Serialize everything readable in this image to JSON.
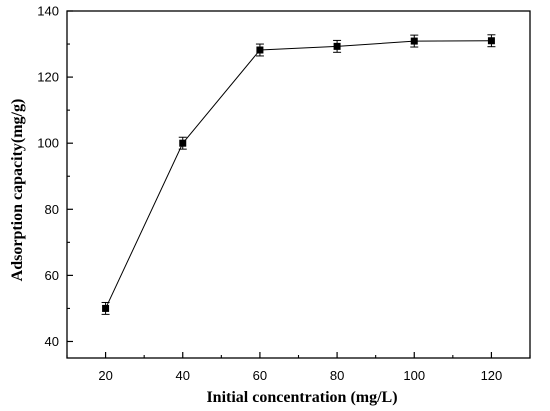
{
  "chart_data": {
    "type": "line",
    "title": "",
    "xlabel": "Initial concentration (mg/L)",
    "ylabel": "Adsorption capacity(mg/g)",
    "xlim": [
      10,
      130
    ],
    "ylim": [
      35,
      140
    ],
    "xticks": [
      20,
      40,
      60,
      80,
      100,
      120
    ],
    "yticks": [
      40,
      60,
      80,
      100,
      120,
      140
    ],
    "grid": false,
    "legend": "none",
    "marker": "square",
    "error_bars": true,
    "series": [
      {
        "x": [
          20,
          40,
          60,
          80,
          100,
          120
        ],
        "y": [
          50,
          100,
          128.2,
          129.3,
          130.9,
          131
        ],
        "yerr": [
          1.8,
          1.8,
          1.8,
          1.8,
          1.8,
          1.8
        ]
      }
    ]
  },
  "colors": {
    "line": "#000000",
    "marker": "#000000",
    "axis": "#000000"
  }
}
